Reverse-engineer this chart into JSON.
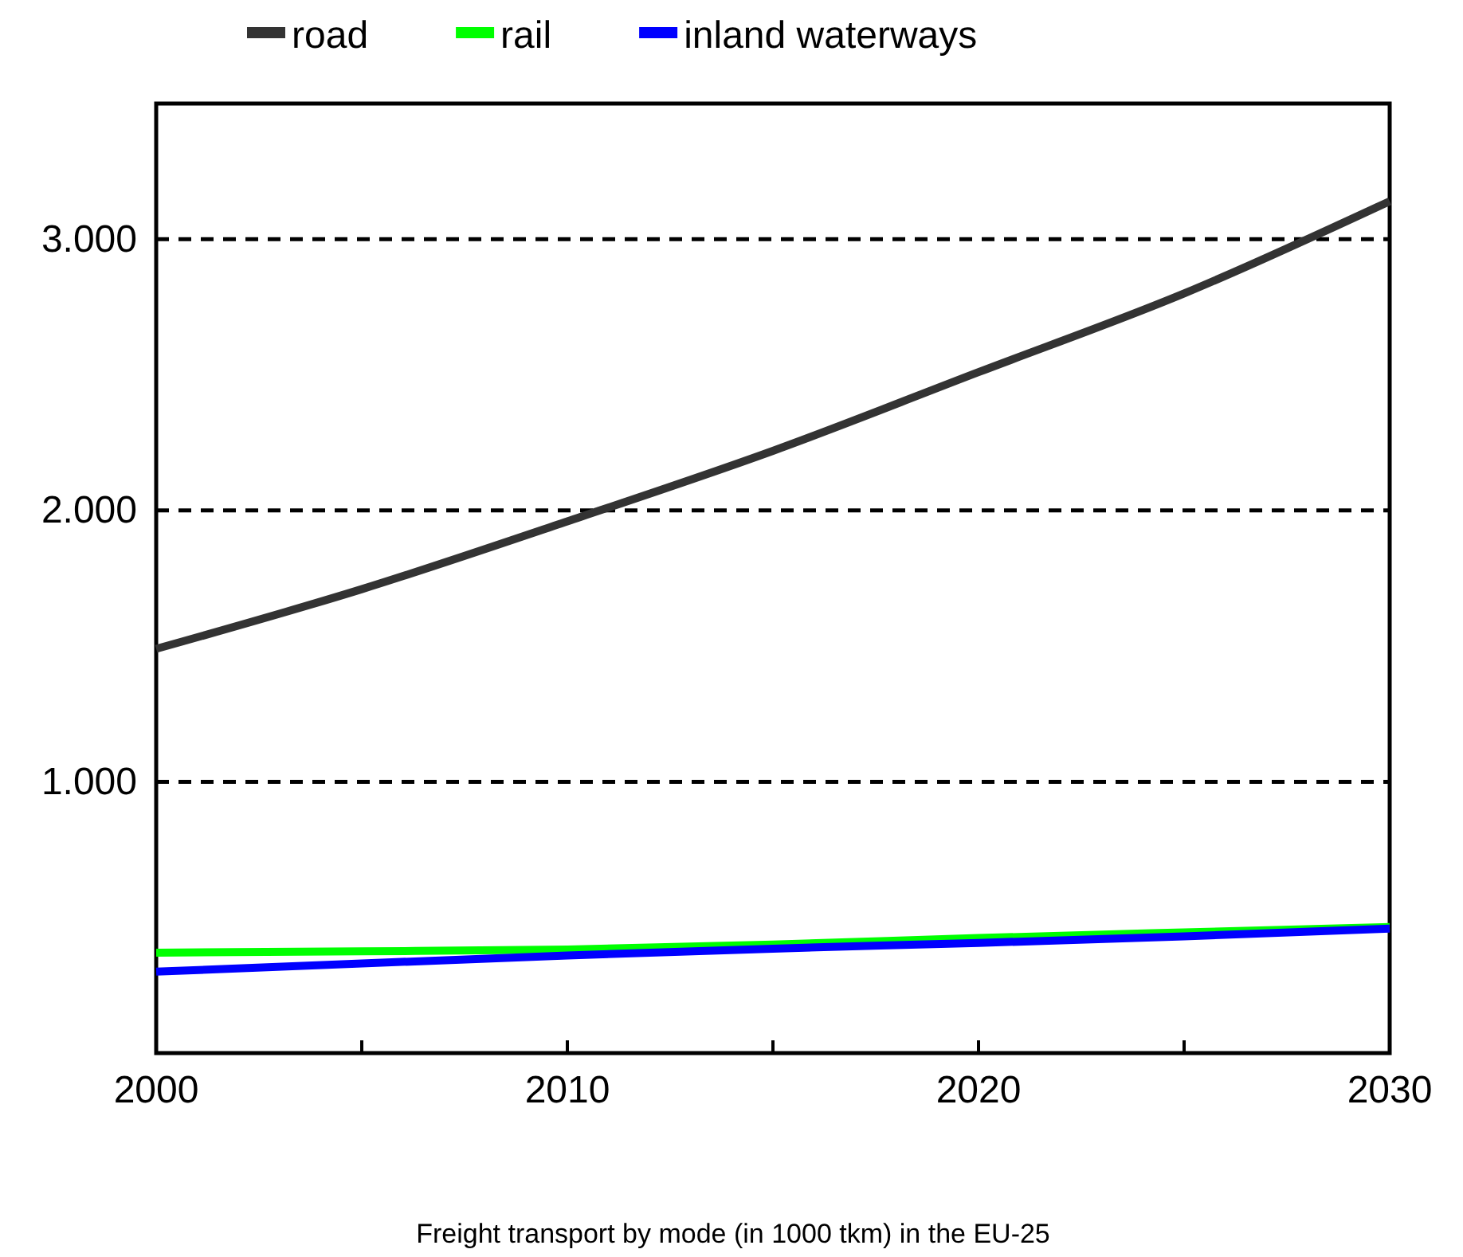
{
  "chart_data": {
    "type": "line",
    "x": [
      2000,
      2005,
      2010,
      2015,
      2020,
      2025,
      2030
    ],
    "series": [
      {
        "name": "road",
        "color": "#333333",
        "values": [
          1490,
          1710,
          1960,
          2220,
          2510,
          2800,
          3140
        ]
      },
      {
        "name": "rail",
        "color": "#00ff00",
        "values": [
          370,
          375,
          382,
          400,
          424,
          445,
          465
        ]
      },
      {
        "name": "inland waterways",
        "color": "#0000ff",
        "values": [
          300,
          330,
          360,
          385,
          406,
          430,
          459
        ]
      }
    ],
    "xlim": [
      2000,
      2030
    ],
    "xticks": [
      2000,
      {
        "value": 2005,
        "label": null
      },
      2010,
      {
        "value": 2015,
        "label": null
      },
      2020,
      {
        "value": 2025,
        "label": null
      },
      2030
    ],
    "ylim": [
      0,
      3500
    ],
    "yticks": [
      {
        "value": 1000,
        "label": "1.000"
      },
      {
        "value": 2000,
        "label": "2.000"
      },
      {
        "value": 3000,
        "label": "3.000"
      }
    ],
    "grid": "y",
    "legend": "top",
    "marker": "none",
    "line_style": "solid",
    "annotations": [
      "Freight transport by mode (in 1000 tkm) in the EU-25"
    ]
  }
}
